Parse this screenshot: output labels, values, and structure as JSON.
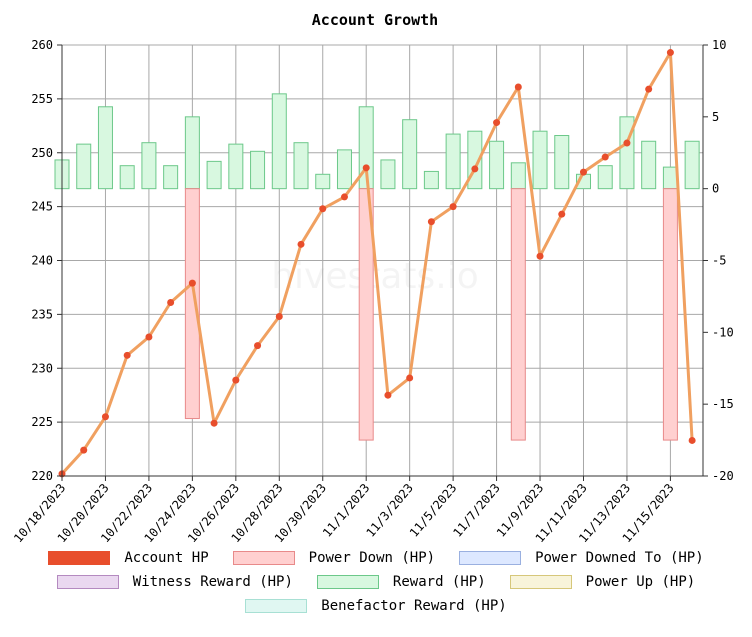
{
  "chart_data": {
    "type": "bar+line",
    "title": "Account Growth",
    "watermark": "hivestats.io",
    "x_tick_labels": [
      "10/18/2023",
      "10/20/2023",
      "10/22/2023",
      "10/24/2023",
      "10/26/2023",
      "10/28/2023",
      "10/30/2023",
      "11/1/2023",
      "11/3/2023",
      "11/5/2023",
      "11/7/2023",
      "11/9/2023",
      "11/11/2023",
      "11/13/2023",
      "11/15/2023"
    ],
    "y_left": {
      "min": 220,
      "max": 260,
      "ticks": [
        220,
        225,
        230,
        235,
        240,
        245,
        250,
        255,
        260
      ]
    },
    "y_right": {
      "min": -20,
      "max": 10,
      "ticks": [
        -20,
        -15,
        -10,
        -5,
        0,
        5,
        10
      ]
    },
    "grid": true,
    "legend_position": "bottom",
    "legend": [
      [
        {
          "label": "Account HP",
          "fill": "#e84e2c",
          "stroke": "#e84e2c"
        },
        {
          "label": "Power Down (HP)",
          "fill": "#ffd0d0",
          "stroke": "#e88a8a"
        },
        {
          "label": "Power Downed To (HP)",
          "fill": "#dde8ff",
          "stroke": "#9ab0e0"
        }
      ],
      [
        {
          "label": "Witness Reward (HP)",
          "fill": "#ead8f0",
          "stroke": "#b48ac0"
        },
        {
          "label": "Reward (HP)",
          "fill": "#d8f8e0",
          "stroke": "#6cc88a"
        },
        {
          "label": "Power Up (HP)",
          "fill": "#f8f4da",
          "stroke": "#d6c77a"
        }
      ],
      [
        {
          "label": "Benefactor Reward (HP)",
          "fill": "#e0f7f2",
          "stroke": "#a8e0d4"
        }
      ]
    ],
    "x_days": [
      "10/18",
      "10/19",
      "10/20",
      "10/21",
      "10/22",
      "10/23",
      "10/24",
      "10/25",
      "10/26",
      "10/27",
      "10/28",
      "10/29",
      "10/30",
      "10/31",
      "11/1",
      "11/2",
      "11/3",
      "11/4",
      "11/5",
      "11/6",
      "11/7",
      "11/8",
      "11/9",
      "11/10",
      "11/11",
      "11/12",
      "11/13",
      "11/14",
      "11/15",
      "11/16"
    ],
    "series": [
      {
        "name": "Account HP",
        "axis": "left",
        "kind": "line",
        "color": "#f0a060",
        "marker_color": "#e84e2c",
        "values": [
          220.2,
          222.4,
          225.5,
          231.2,
          232.9,
          236.1,
          237.9,
          224.9,
          228.9,
          232.1,
          234.8,
          241.5,
          244.8,
          245.9,
          248.6,
          227.5,
          229.1,
          243.6,
          245.0,
          248.5,
          252.8,
          256.1,
          240.4,
          244.3,
          248.2,
          249.6,
          250.9,
          255.9,
          259.3,
          223.3
        ]
      },
      {
        "name": "Reward (HP)",
        "axis": "right",
        "kind": "bar",
        "color": "#d8f8e0",
        "stroke": "#6cc88a",
        "values": [
          2.0,
          3.1,
          5.7,
          1.6,
          3.2,
          1.6,
          5.0,
          1.9,
          3.1,
          2.6,
          6.6,
          3.2,
          1.0,
          2.7,
          5.7,
          2.0,
          4.8,
          1.2,
          3.8,
          4.0,
          3.3,
          1.8,
          4.0,
          3.7,
          1.0,
          1.6,
          5.0,
          3.3,
          1.5,
          3.3
        ]
      },
      {
        "name": "Power Down (HP)",
        "axis": "right",
        "kind": "bar",
        "color": "#ffd0d0",
        "stroke": "#e88a8a",
        "values": [
          0,
          0,
          0,
          0,
          0,
          0,
          -16.0,
          0,
          0,
          0,
          0,
          0,
          0,
          0,
          -17.5,
          0,
          0,
          0,
          0,
          0,
          0,
          -17.5,
          0,
          0,
          0,
          0,
          0,
          0,
          -17.5,
          0
        ]
      }
    ]
  }
}
